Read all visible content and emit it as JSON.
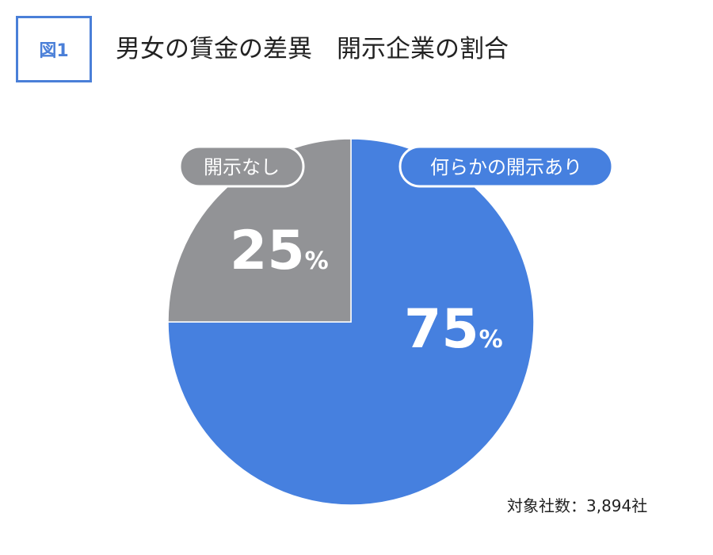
{
  "figure": {
    "badge": "図1",
    "title": "男女の賃金の差異　開示企業の割合"
  },
  "chart_data": {
    "type": "pie",
    "title": "男女の賃金の差異　開示企業の割合",
    "slices": [
      {
        "label": "何らかの開示あり",
        "value": 75,
        "value_label": "75",
        "unit": "%",
        "color": "#4680df"
      },
      {
        "label": "開示なし",
        "value": 25,
        "value_label": "25",
        "unit": "%",
        "color": "#929396"
      }
    ],
    "legend": "callout labels",
    "start": "12 o'clock, clockwise"
  },
  "note": "対象社数：3,894社"
}
